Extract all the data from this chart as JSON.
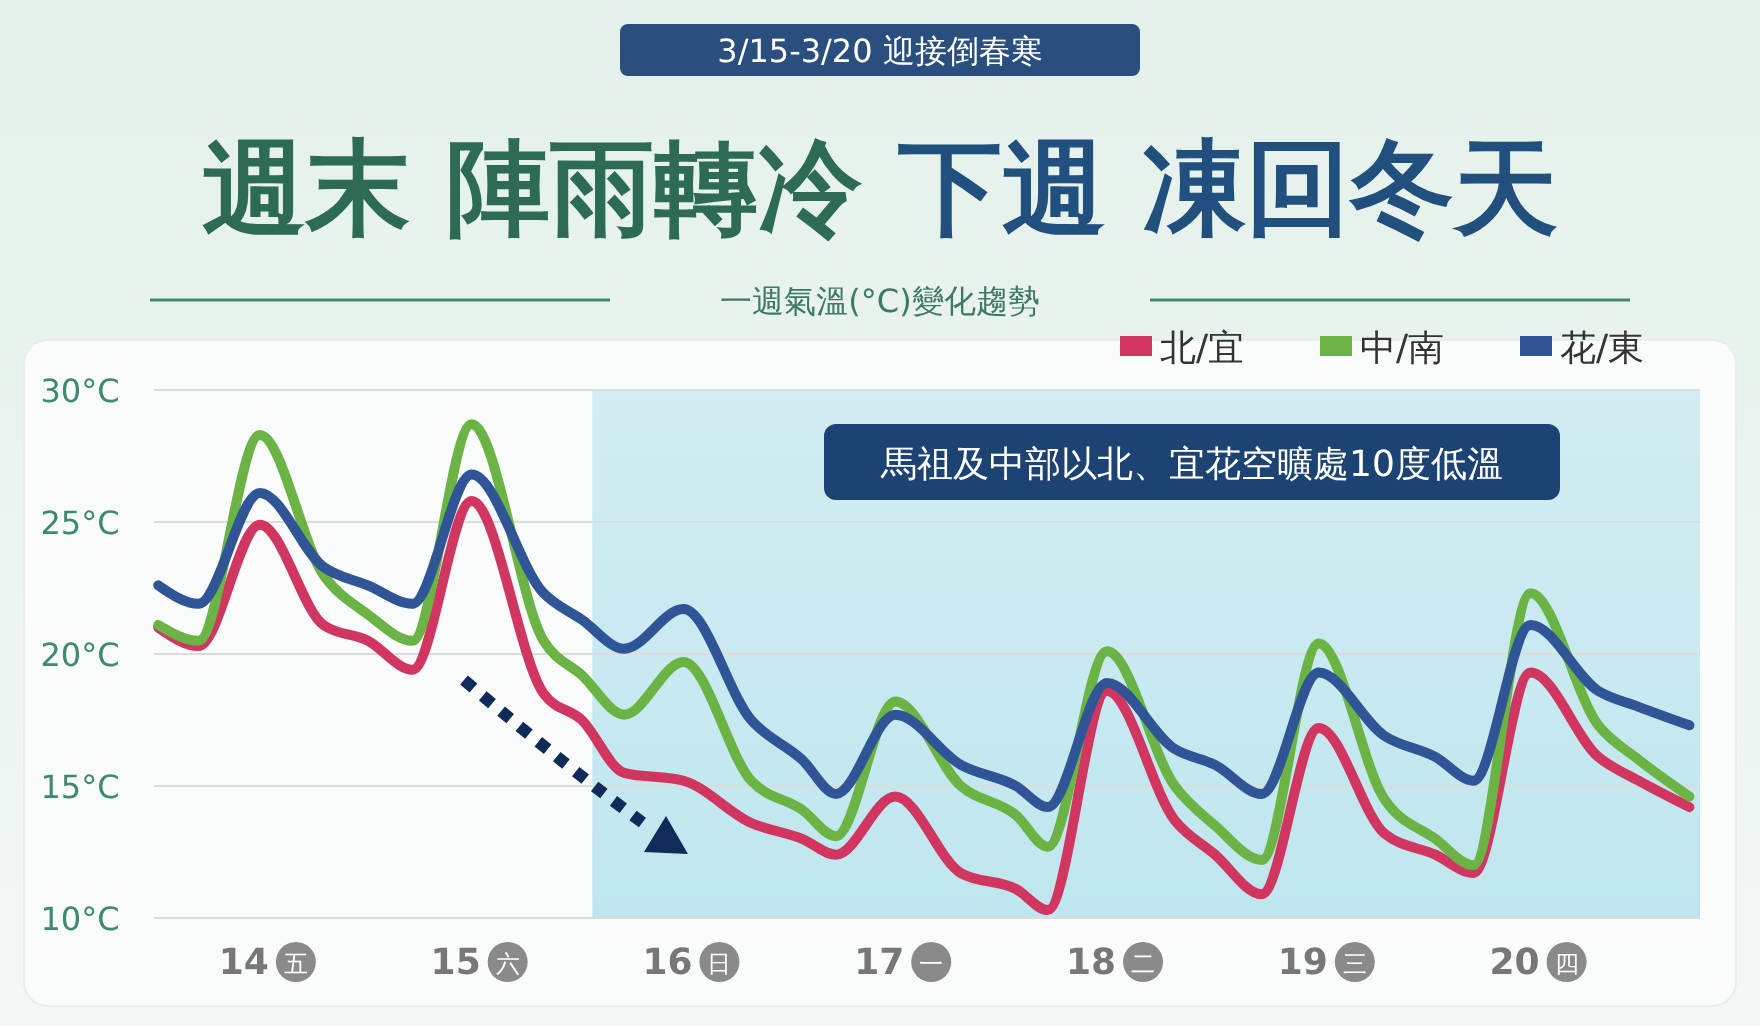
{
  "chart_data": {
    "type": "line",
    "title": "週末 陣雨轉冷 下週 凍回冬天",
    "subtitle": "3/15-3/20 迎接倒春寒",
    "annotations": [
      "一週氣溫(°C)變化趨勢",
      "馬祖及中部以北、宜花空曠處10度低溫"
    ],
    "x": [
      13.52,
      13.71,
      14.0,
      14.3,
      14.51,
      14.72,
      15.0,
      15.34,
      15.52,
      15.72,
      16.0,
      16.32,
      16.56,
      16.72,
      17.0,
      17.31,
      17.57,
      17.72,
      18.0,
      18.32,
      18.51,
      18.73,
      19.0,
      19.31,
      19.55,
      19.73,
      20.0,
      20.32,
      20.51,
      20.75
    ],
    "series": [
      {
        "name": "北/宜",
        "color": "#d0365f",
        "values": [
          21.0,
          20.3,
          24.9,
          21.1,
          20.5,
          19.4,
          25.8,
          18.5,
          17.5,
          15.5,
          15.2,
          13.6,
          13.0,
          12.4,
          14.6,
          11.7,
          11.1,
          10.3,
          18.6,
          13.7,
          12.4,
          10.9,
          17.2,
          13.2,
          12.4,
          11.7,
          19.3,
          16.1,
          15.2,
          14.2
        ]
      },
      {
        "name": "中/南",
        "color": "#6ab344",
        "values": [
          21.1,
          20.5,
          28.3,
          23.0,
          21.5,
          20.5,
          28.7,
          20.5,
          19.2,
          17.7,
          19.7,
          15.2,
          14.1,
          13.1,
          18.2,
          15.0,
          13.9,
          12.7,
          20.1,
          15.0,
          13.5,
          12.2,
          20.4,
          14.5,
          13.0,
          12.0,
          22.3,
          17.3,
          16.0,
          14.6
        ]
      },
      {
        "name": "花/東",
        "color": "#2f5597",
        "values": [
          22.6,
          21.9,
          26.1,
          23.3,
          22.6,
          21.9,
          26.8,
          22.3,
          21.3,
          20.2,
          21.7,
          17.5,
          16.0,
          14.7,
          17.7,
          15.8,
          15.0,
          14.2,
          18.9,
          16.4,
          15.8,
          14.7,
          19.3,
          16.9,
          16.1,
          15.2,
          21.1,
          18.6,
          18.0,
          17.3
        ]
      }
    ],
    "xlim": [
      13.5,
      20.8
    ],
    "xticks": [
      {
        "value": 14,
        "label": "14 五"
      },
      {
        "value": 15,
        "label": "15 六"
      },
      {
        "value": 16,
        "label": "16 日"
      },
      {
        "value": 17,
        "label": "17 一"
      },
      {
        "value": 18,
        "label": "18 二"
      },
      {
        "value": 19,
        "label": "19 三"
      },
      {
        "value": 20,
        "label": "20 四"
      }
    ],
    "ylim": [
      10,
      30
    ],
    "yticks": [
      {
        "value": 10,
        "label": "10°C"
      },
      {
        "value": 15,
        "label": "15°C"
      },
      {
        "value": 20,
        "label": "20°C"
      },
      {
        "value": 25,
        "label": "25°C"
      },
      {
        "value": 30,
        "label": "30°C"
      }
    ],
    "bands": [
      {
        "axis": "x",
        "from": 15.57,
        "to": 20.8,
        "color": "#bfe6ee"
      }
    ],
    "grid": "y",
    "legend": "top right",
    "marker": "none",
    "line_style": "solid"
  }
}
